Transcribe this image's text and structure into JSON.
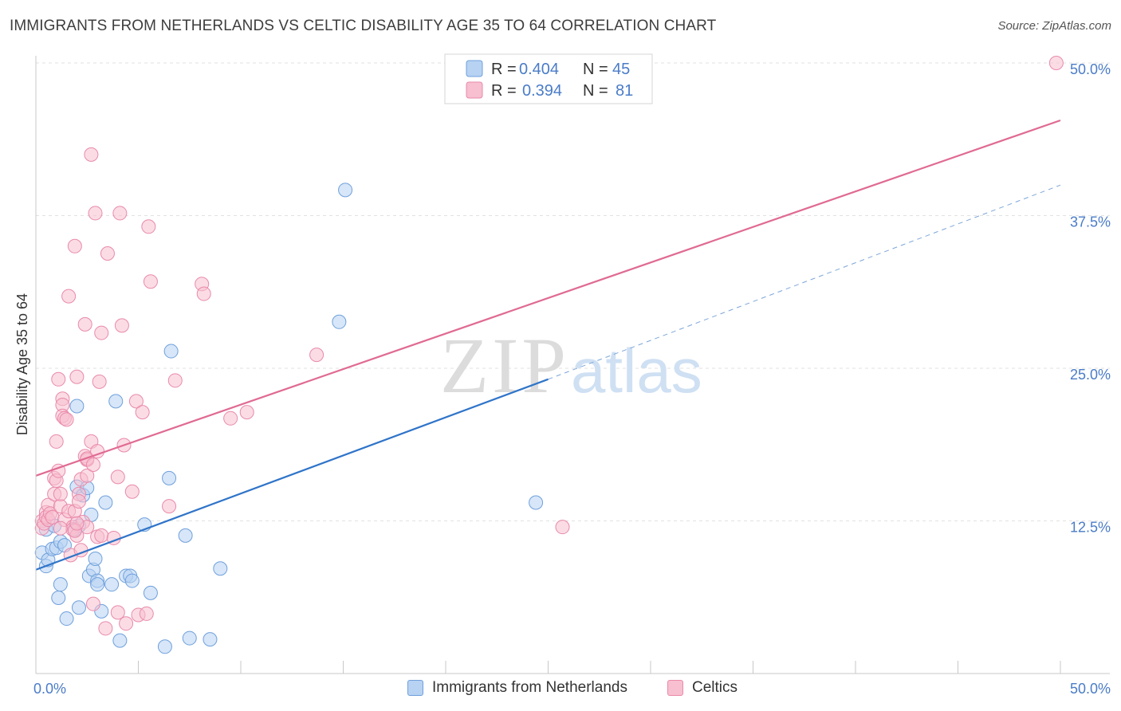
{
  "title": "IMMIGRANTS FROM NETHERLANDS VS CELTIC DISABILITY AGE 35 TO 64 CORRELATION CHART",
  "source": "Source: ZipAtlas.com",
  "watermark": {
    "zip": "ZIP",
    "atlas": "atlas"
  },
  "colors": {
    "blue_fill": "#b7d2f2",
    "blue_stroke": "#6fa0dc",
    "blue_line": "#2f74c9",
    "pink_fill": "#f7bfd0",
    "pink_stroke": "#e98aaa",
    "pink_line": "#e06a93",
    "tick_label": "#4a7cc8",
    "grid": "#e2e2e2"
  },
  "legend_top": [
    {
      "r_label": "R =",
      "r_value": "0.404",
      "n_label": "N =",
      "n_value": "45",
      "color": "blue"
    },
    {
      "r_label": "R =",
      "r_value": "0.394",
      "n_label": "N =",
      "n_value": "81",
      "color": "pink"
    }
  ],
  "chart_data": {
    "type": "scatter",
    "title": "IMMIGRANTS FROM NETHERLANDS VS CELTIC DISABILITY AGE 35 TO 64 CORRELATION CHART",
    "xlabel": "",
    "ylabel": "Disability Age 35 to 64",
    "xlim": [
      0,
      50
    ],
    "ylim": [
      0,
      50
    ],
    "x_tick_labels": [
      {
        "value": 0,
        "label": "0.0%"
      },
      {
        "value": 50,
        "label": "50.0%"
      }
    ],
    "y_tick_labels": [
      {
        "value": 12.5,
        "label": "12.5%"
      },
      {
        "value": 25,
        "label": "25.0%"
      },
      {
        "value": 37.5,
        "label": "37.5%"
      },
      {
        "value": 50,
        "label": "50.0%"
      }
    ],
    "grid": true,
    "legend_position": "bottom",
    "series": [
      {
        "name": "Immigrants from Netherlands",
        "color": "blue",
        "points": [
          [
            0.3,
            9.9
          ],
          [
            0.5,
            8.8
          ],
          [
            0.6,
            9.3
          ],
          [
            0.5,
            11.8
          ],
          [
            0.8,
            10.2
          ],
          [
            1.0,
            10.3
          ],
          [
            0.9,
            12.1
          ],
          [
            1.2,
            10.8
          ],
          [
            1.4,
            10.5
          ],
          [
            1.2,
            7.3
          ],
          [
            1.1,
            6.2
          ],
          [
            1.5,
            4.5
          ],
          [
            1.9,
            11.8
          ],
          [
            2.1,
            12.1
          ],
          [
            2.0,
            15.3
          ],
          [
            2.3,
            14.6
          ],
          [
            2.5,
            15.2
          ],
          [
            2.7,
            13.0
          ],
          [
            2.0,
            21.9
          ],
          [
            2.1,
            5.4
          ],
          [
            2.6,
            8.0
          ],
          [
            2.8,
            8.5
          ],
          [
            2.9,
            9.4
          ],
          [
            3.0,
            7.6
          ],
          [
            3.0,
            7.3
          ],
          [
            3.2,
            5.1
          ],
          [
            3.4,
            14.0
          ],
          [
            3.7,
            7.3
          ],
          [
            4.1,
            2.7
          ],
          [
            4.4,
            8.0
          ],
          [
            4.6,
            8.0
          ],
          [
            4.7,
            7.6
          ],
          [
            3.9,
            22.3
          ],
          [
            5.3,
            12.2
          ],
          [
            5.6,
            6.6
          ],
          [
            6.3,
            2.2
          ],
          [
            6.5,
            16.0
          ],
          [
            6.6,
            26.4
          ],
          [
            7.3,
            11.3
          ],
          [
            7.5,
            2.9
          ],
          [
            8.5,
            2.8
          ],
          [
            9.0,
            8.6
          ],
          [
            15.1,
            39.6
          ],
          [
            14.8,
            28.8
          ],
          [
            24.4,
            14.0
          ]
        ]
      },
      {
        "name": "Celtics",
        "color": "pink",
        "points": [
          [
            0.3,
            12.5
          ],
          [
            0.3,
            11.9
          ],
          [
            0.4,
            12.3
          ],
          [
            0.5,
            13.2
          ],
          [
            0.5,
            12.8
          ],
          [
            0.6,
            13.8
          ],
          [
            0.6,
            12.6
          ],
          [
            0.7,
            13.1
          ],
          [
            0.8,
            12.8
          ],
          [
            0.9,
            16.0
          ],
          [
            0.9,
            14.7
          ],
          [
            1.0,
            15.8
          ],
          [
            1.0,
            19.0
          ],
          [
            1.1,
            16.6
          ],
          [
            1.1,
            24.1
          ],
          [
            1.2,
            13.7
          ],
          [
            1.2,
            14.7
          ],
          [
            1.3,
            22.5
          ],
          [
            1.3,
            22.0
          ],
          [
            1.3,
            21.1
          ],
          [
            1.4,
            12.6
          ],
          [
            1.4,
            20.9
          ],
          [
            1.5,
            20.8
          ],
          [
            1.6,
            30.9
          ],
          [
            1.6,
            13.3
          ],
          [
            1.7,
            9.7
          ],
          [
            1.8,
            12.0
          ],
          [
            1.8,
            11.8
          ],
          [
            1.9,
            35.0
          ],
          [
            1.9,
            13.3
          ],
          [
            2.0,
            24.3
          ],
          [
            2.0,
            11.3
          ],
          [
            2.1,
            14.7
          ],
          [
            2.1,
            14.1
          ],
          [
            2.2,
            15.9
          ],
          [
            2.2,
            10.1
          ],
          [
            2.3,
            12.4
          ],
          [
            2.4,
            28.6
          ],
          [
            2.4,
            17.8
          ],
          [
            2.5,
            17.5
          ],
          [
            2.5,
            16.2
          ],
          [
            2.5,
            12.0
          ],
          [
            2.5,
            17.6
          ],
          [
            2.7,
            42.5
          ],
          [
            2.7,
            19.0
          ],
          [
            2.8,
            17.1
          ],
          [
            2.8,
            5.7
          ],
          [
            2.9,
            37.7
          ],
          [
            3.0,
            18.2
          ],
          [
            3.0,
            11.2
          ],
          [
            3.1,
            23.9
          ],
          [
            3.2,
            27.9
          ],
          [
            3.2,
            11.3
          ],
          [
            3.4,
            3.7
          ],
          [
            3.5,
            34.4
          ],
          [
            3.8,
            11.1
          ],
          [
            4.0,
            16.1
          ],
          [
            4.0,
            5.0
          ],
          [
            4.1,
            37.7
          ],
          [
            4.2,
            28.5
          ],
          [
            4.3,
            18.7
          ],
          [
            4.4,
            4.1
          ],
          [
            4.7,
            14.9
          ],
          [
            4.9,
            22.3
          ],
          [
            5.0,
            4.8
          ],
          [
            5.2,
            21.4
          ],
          [
            5.4,
            4.9
          ],
          [
            5.5,
            36.6
          ],
          [
            5.6,
            32.1
          ],
          [
            6.5,
            13.7
          ],
          [
            6.8,
            24.0
          ],
          [
            8.1,
            31.9
          ],
          [
            8.2,
            31.1
          ],
          [
            9.5,
            20.9
          ],
          [
            10.3,
            21.4
          ],
          [
            13.7,
            26.1
          ],
          [
            1.9,
            11.7
          ],
          [
            1.2,
            11.9
          ],
          [
            2.0,
            12.3
          ],
          [
            25.7,
            12.0
          ],
          [
            49.8,
            50.0
          ]
        ]
      }
    ],
    "trend_lines": [
      {
        "series": "Immigrants from Netherlands",
        "x_start": 0,
        "y_start": 8.5,
        "x_end": 25,
        "y_end": 24.1,
        "dashed_to_x": 50,
        "dashed_to_y": 40.0
      },
      {
        "series": "Celtics",
        "x_start": 0,
        "y_start": 16.2,
        "x_end": 50,
        "y_end": 45.3
      }
    ]
  }
}
